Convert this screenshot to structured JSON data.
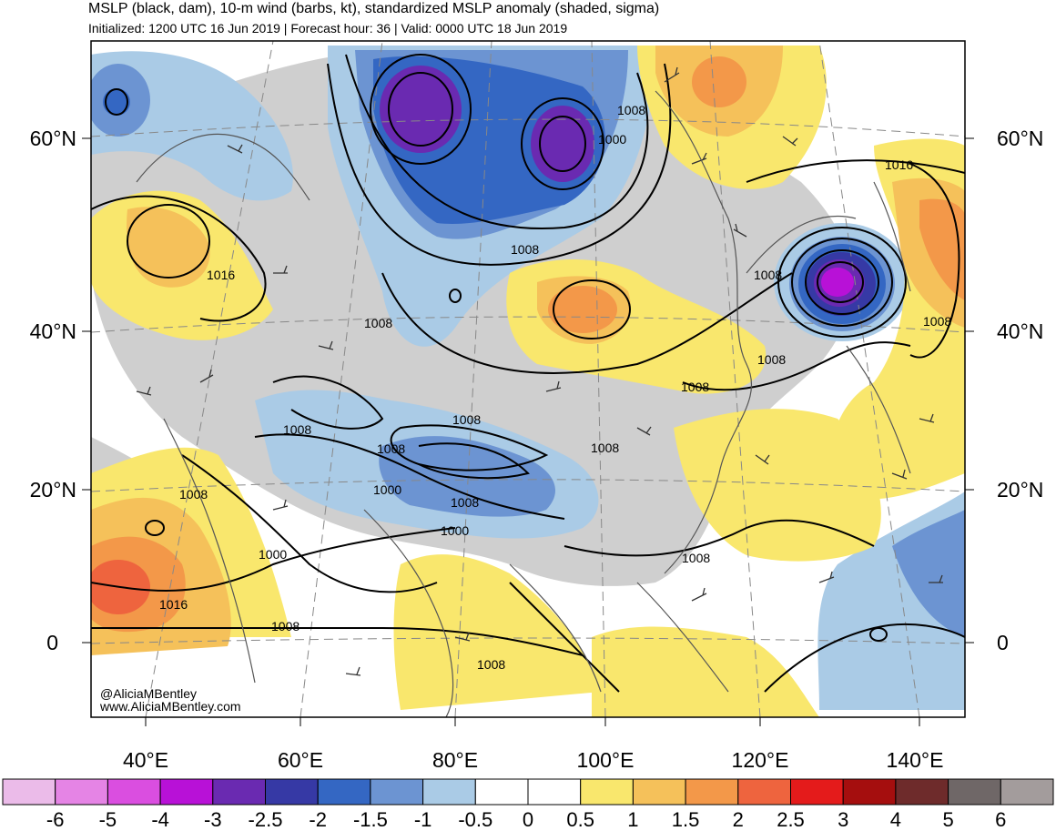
{
  "title": "MSLP (black, dam), 10-m wind (barbs, kt), standardized MSLP anomaly (shaded, sigma)",
  "subtitle": "Initialized: 1200 UTC 16 Jun 2019 | Forecast hour: 36 | Valid: 0000 UTC 18 Jun 2019",
  "credit": [
    "@AliciaMBentley",
    "www.AliciaMBentley.com"
  ],
  "lat_labels": [
    "60°N",
    "40°N",
    "20°N",
    "0"
  ],
  "lon_labels": [
    "40°E",
    "60°E",
    "80°E",
    "100°E",
    "120°E",
    "140°E"
  ],
  "isobar_labels": [
    "1008",
    "1000",
    "1016",
    "1008",
    "1008",
    "1016",
    "1008",
    "1008",
    "1008",
    "1008",
    "1008",
    "1008",
    "1000",
    "1008",
    "1000",
    "1008",
    "1008",
    "1000",
    "1008",
    "1016",
    "1008",
    "1008",
    "1008"
  ],
  "colorbar": {
    "labels": [
      "-6",
      "-5",
      "-4",
      "-3",
      "-2.5",
      "-2",
      "-1.5",
      "-1",
      "-0.5",
      "0",
      "0.5",
      "1",
      "1.5",
      "2",
      "2.5",
      "3",
      "4",
      "5",
      "6"
    ],
    "colors": [
      "#ebbbe9",
      "#e584e5",
      "#da4ee0",
      "#b811d7",
      "#6a2ab1",
      "#3639a5",
      "#3467c3",
      "#6c94d2",
      "#aacbe6",
      "#ffffff",
      "#ffffff",
      "#f9e76d",
      "#f5c15a",
      "#f39849",
      "#ee643e",
      "#e41b1b",
      "#a50e0e",
      "#6e2b2b",
      "#6f6767",
      "#a39c9c"
    ]
  }
}
